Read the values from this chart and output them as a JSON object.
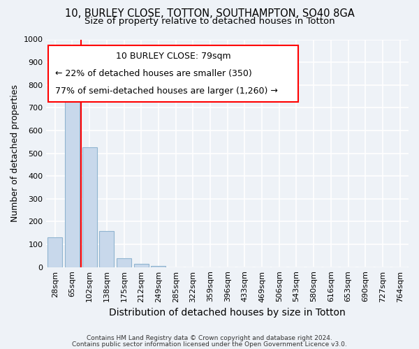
{
  "title1": "10, BURLEY CLOSE, TOTTON, SOUTHAMPTON, SO40 8GA",
  "title2": "Size of property relative to detached houses in Totton",
  "xlabel": "Distribution of detached houses by size in Totton",
  "ylabel": "Number of detached properties",
  "footer1": "Contains HM Land Registry data © Crown copyright and database right 2024.",
  "footer2": "Contains public sector information licensed under the Open Government Licence v3.0.",
  "annotation_line1": "10 BURLEY CLOSE: 79sqm",
  "annotation_line2": "← 22% of detached houses are smaller (350)",
  "annotation_line3": "77% of semi-detached houses are larger (1,260) →",
  "bar_labels": [
    "28sqm",
    "65sqm",
    "102sqm",
    "138sqm",
    "175sqm",
    "212sqm",
    "249sqm",
    "285sqm",
    "322sqm",
    "359sqm",
    "396sqm",
    "433sqm",
    "469sqm",
    "506sqm",
    "543sqm",
    "580sqm",
    "616sqm",
    "653sqm",
    "690sqm",
    "727sqm",
    "764sqm"
  ],
  "bar_values": [
    130,
    780,
    525,
    158,
    40,
    13,
    5,
    0,
    0,
    0,
    0,
    0,
    0,
    0,
    0,
    0,
    0,
    0,
    0,
    0,
    0
  ],
  "bar_color": "#c8d8eb",
  "bar_edge_color": "#90b4d0",
  "bar_width": 0.85,
  "red_line_x": 1.5,
  "ylim": [
    0,
    1000
  ],
  "yticks": [
    0,
    100,
    200,
    300,
    400,
    500,
    600,
    700,
    800,
    900,
    1000
  ],
  "background_color": "#eef2f7",
  "plot_bg_color": "#eef2f7",
  "grid_color": "#ffffff",
  "title1_fontsize": 10.5,
  "title2_fontsize": 9.5,
  "annotation_fontsize": 9,
  "tick_fontsize": 8,
  "ylabel_fontsize": 9,
  "xlabel_fontsize": 10
}
